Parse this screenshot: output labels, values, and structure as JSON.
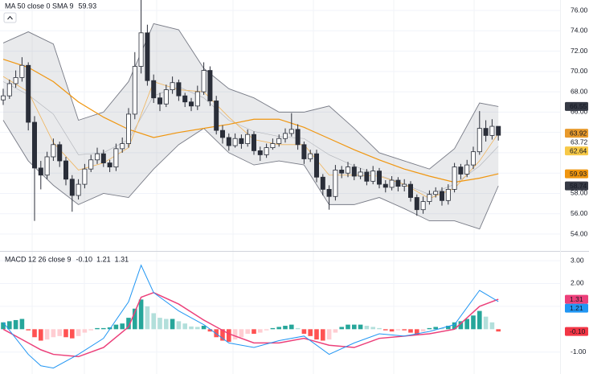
{
  "chart_data": [
    {
      "type": "candlestick",
      "legend": "MA 50 close 0 SMA 9",
      "ylim": [
        52.34,
        77.03
      ],
      "yticks": [
        {
          "value": 54,
          "label": "54.00"
        },
        {
          "value": 56,
          "label": "56.00"
        },
        {
          "value": 58,
          "label": "58.00"
        },
        {
          "value": 60,
          "label": "60.00"
        },
        {
          "value": 62,
          "label": "62.00"
        },
        {
          "value": 64,
          "label": "64.00"
        },
        {
          "value": 66,
          "label": "66.00"
        },
        {
          "value": 68,
          "label": "68.00"
        },
        {
          "value": 70,
          "label": "70.00"
        },
        {
          "value": 72,
          "label": "72.00"
        },
        {
          "value": 74,
          "label": "74.00"
        },
        {
          "value": 76,
          "label": "76.00"
        }
      ],
      "up_color": "#ffffff",
      "down_color": "#2a2e39",
      "wick_color": "#2a2e39",
      "open": [
        67.2,
        67.6,
        68.8,
        69.4,
        70.6,
        65.0,
        60.5,
        59.8,
        61.6,
        62.8,
        61.2,
        59.4,
        57.8,
        58.9,
        60.4,
        61.3,
        61.9,
        61.0,
        60.6,
        62.4,
        62.9,
        65.8,
        70.5,
        73.8,
        69.1,
        67.4,
        66.8,
        68.2,
        68.9,
        67.6,
        67.0,
        66.6,
        68.0,
        70.1,
        67.1,
        64.2,
        63.5,
        62.7,
        63.4,
        62.9,
        63.8,
        62.2,
        61.8,
        62.5,
        62.9,
        63.4,
        63.9,
        64.3,
        62.8,
        61.4,
        61.9,
        59.6,
        58.4,
        57.7,
        60.3,
        60.0,
        60.6,
        59.7,
        60.1,
        59.2,
        60.2,
        58.9,
        58.6,
        59.3,
        58.7,
        58.9,
        57.6,
        56.4,
        57.2,
        57.9,
        58.2,
        57.3,
        58.4,
        60.6,
        59.9,
        60.8,
        62.1,
        64.4,
        63.7,
        64.6
      ],
      "high": [
        68.3,
        69.2,
        70.1,
        71.4,
        70.9,
        65.6,
        61.2,
        62.1,
        63.4,
        63.1,
        61.6,
        59.8,
        59.4,
        60.9,
        61.8,
        62.5,
        62.3,
        61.3,
        62.9,
        63.5,
        66.4,
        71.9,
        78.0,
        74.6,
        69.7,
        67.9,
        68.7,
        69.5,
        69.2,
        67.9,
        67.4,
        68.6,
        70.9,
        70.5,
        67.6,
        64.7,
        63.9,
        63.9,
        63.8,
        64.3,
        64.1,
        62.6,
        62.9,
        63.4,
        63.8,
        64.4,
        65.9,
        64.8,
        63.1,
        62.3,
        62.3,
        59.9,
        58.8,
        60.8,
        60.7,
        61.1,
        60.9,
        60.5,
        60.4,
        60.7,
        60.5,
        59.3,
        59.7,
        59.6,
        59.4,
        59.2,
        57.9,
        57.7,
        58.3,
        58.6,
        58.6,
        58.9,
        61.0,
        60.9,
        61.3,
        62.6,
        66.1,
        65.2,
        65.3,
        64.4
      ],
      "low": [
        66.7,
        67.3,
        68.4,
        69.0,
        64.2,
        55.3,
        58.4,
        59.4,
        61.2,
        60.6,
        58.8,
        56.2,
        57.4,
        58.5,
        60.1,
        60.9,
        60.6,
        60.1,
        60.2,
        62.0,
        62.5,
        65.3,
        69.8,
        68.6,
        66.9,
        66.1,
        66.5,
        67.8,
        67.1,
        66.5,
        66.1,
        66.2,
        67.7,
        66.6,
        63.8,
        62.9,
        62.2,
        62.5,
        62.4,
        62.6,
        61.8,
        61.2,
        61.5,
        62.3,
        62.6,
        63.0,
        63.6,
        62.3,
        60.9,
        61.1,
        59.1,
        57.8,
        56.4,
        57.3,
        59.5,
        59.6,
        59.3,
        59.4,
        58.8,
        58.9,
        58.5,
        58.1,
        58.3,
        58.2,
        58.2,
        57.2,
        55.8,
        56.0,
        56.9,
        57.6,
        56.8,
        56.9,
        58.1,
        59.4,
        59.6,
        60.4,
        61.8,
        63.1,
        63.3,
        63.2
      ],
      "close": [
        67.6,
        68.8,
        69.4,
        70.6,
        65.0,
        60.5,
        59.8,
        61.6,
        62.8,
        61.2,
        59.4,
        57.8,
        58.9,
        60.4,
        61.3,
        61.9,
        61.0,
        60.6,
        62.4,
        62.9,
        65.8,
        70.5,
        73.8,
        69.1,
        67.4,
        66.8,
        68.2,
        68.9,
        67.6,
        67.0,
        66.6,
        68.0,
        70.1,
        67.1,
        64.2,
        63.5,
        62.7,
        63.4,
        62.9,
        63.8,
        62.2,
        61.8,
        62.5,
        62.9,
        63.4,
        63.9,
        64.3,
        62.8,
        61.4,
        61.9,
        59.6,
        58.4,
        57.7,
        60.3,
        60.0,
        60.6,
        59.7,
        60.1,
        59.2,
        60.2,
        58.9,
        58.6,
        59.3,
        58.7,
        58.9,
        57.6,
        56.4,
        57.2,
        57.9,
        58.2,
        57.3,
        58.4,
        60.6,
        59.9,
        60.8,
        62.1,
        64.4,
        63.7,
        64.6,
        63.72
      ],
      "bollinger": {
        "x": [
          0,
          4,
          8,
          12,
          16,
          20,
          24,
          28,
          32,
          36,
          40,
          44,
          48,
          52,
          56,
          60,
          64,
          68,
          72,
          76,
          79
        ],
        "upper": [
          72.8,
          73.9,
          72.7,
          65.2,
          66.0,
          69.0,
          74.7,
          74.1,
          70.3,
          68.3,
          67.4,
          66.0,
          66.0,
          66.6,
          64.4,
          62.0,
          61.2,
          60.4,
          62.4,
          66.9,
          66.55
        ],
        "middle": [
          69.0,
          67.7,
          65.8,
          61.8,
          62.0,
          63.3,
          67.6,
          68.5,
          67.4,
          65.2,
          64.1,
          63.6,
          63.4,
          61.8,
          60.7,
          59.8,
          58.9,
          57.9,
          58.9,
          60.7,
          62.64
        ],
        "lower": [
          65.2,
          61.2,
          58.8,
          56.9,
          58.0,
          57.6,
          60.4,
          62.8,
          64.4,
          62.0,
          60.8,
          61.2,
          60.8,
          56.9,
          56.9,
          57.6,
          56.5,
          55.3,
          55.3,
          54.5,
          58.74
        ],
        "color": "#787b86",
        "fill": "rgba(120,123,134,0.16)",
        "badge_colors": [
          "#363a45",
          "#f7c948",
          "#363a45"
        ]
      },
      "series": [
        {
          "x": [
            0,
            4,
            8,
            12,
            16,
            20,
            24,
            28,
            32,
            36,
            40,
            44,
            48,
            52,
            56,
            60,
            64,
            68,
            72,
            76,
            79
          ],
          "values": [
            69.5,
            68.0,
            63.0,
            60.3,
            61.0,
            62.5,
            69.0,
            68.2,
            68.0,
            65.5,
            63.3,
            62.8,
            62.8,
            59.8,
            59.8,
            59.7,
            58.9,
            57.5,
            58.5,
            61.2,
            63.92
          ],
          "color": "#f0b45a",
          "width": 0.8,
          "badge_color": "#e89a2c"
        },
        {
          "x": [
            0,
            4,
            8,
            12,
            16,
            20,
            24,
            28,
            32,
            36,
            40,
            44,
            48,
            52,
            56,
            60,
            64,
            68,
            72,
            76,
            79
          ],
          "values": [
            71.2,
            70.4,
            69.0,
            67.0,
            65.5,
            64.3,
            63.5,
            64.0,
            64.4,
            64.8,
            65.3,
            65.3,
            64.5,
            63.4,
            62.3,
            61.3,
            60.4,
            59.7,
            59.1,
            59.5,
            59.93
          ],
          "color": "#f0960f",
          "width": 1.2,
          "badge_color": "#f0960f"
        }
      ]
    },
    {
      "type": "macd",
      "title": "MACD 12 26 close 9",
      "ylim": [
        -1.96,
        3.39
      ],
      "yticks": [
        {
          "value": 3,
          "label": "3.00"
        },
        {
          "value": 2,
          "label": "2.00"
        },
        {
          "value": 1,
          "label": "1.00"
        },
        {
          "value": -1,
          "label": "-1.00"
        }
      ],
      "histogram": {
        "values": [
          0.3,
          0.35,
          0.4,
          0.45,
          -0.05,
          -0.35,
          -0.5,
          -0.45,
          -0.35,
          -0.3,
          -0.35,
          -0.4,
          -0.3,
          -0.15,
          -0.05,
          0.05,
          0.05,
          0.08,
          0.2,
          0.25,
          0.5,
          0.9,
          1.3,
          1.0,
          0.7,
          0.5,
          0.45,
          0.45,
          0.35,
          0.25,
          0.12,
          0.1,
          0.15,
          -0.1,
          -0.35,
          -0.5,
          -0.55,
          -0.45,
          -0.35,
          -0.2,
          -0.2,
          -0.15,
          -0.05,
          0.05,
          0.1,
          0.15,
          0.2,
          0.05,
          -0.2,
          -0.3,
          -0.45,
          -0.5,
          -0.45,
          -0.15,
          0.1,
          0.2,
          0.2,
          0.2,
          0.15,
          0.1,
          0.05,
          -0.05,
          -0.1,
          -0.05,
          -0.05,
          -0.15,
          -0.25,
          -0.1,
          0.05,
          0.1,
          0.05,
          0.15,
          0.3,
          0.35,
          0.45,
          0.6,
          0.8,
          0.55,
          0.3,
          -0.1
        ],
        "colors": {
          "pos_rise": "#26a69a",
          "pos_fall": "#b2dfdb",
          "neg_fall": "#ff5252",
          "neg_rise": "#ffcdd2"
        }
      },
      "macd": {
        "x": [
          0,
          4,
          6,
          8,
          12,
          16,
          20,
          22,
          24,
          28,
          32,
          36,
          40,
          44,
          48,
          52,
          56,
          60,
          64,
          68,
          72,
          76,
          79
        ],
        "values": [
          0.3,
          -1.1,
          -1.6,
          -1.7,
          -1.1,
          -0.4,
          1.2,
          2.8,
          1.6,
          0.8,
          0.2,
          -0.6,
          -0.8,
          -0.5,
          -0.3,
          -1.1,
          -0.6,
          -0.2,
          -0.3,
          -0.1,
          0.2,
          1.7,
          1.21
        ],
        "color": "#2196f3"
      },
      "signal": {
        "x": [
          0,
          4,
          6,
          8,
          12,
          16,
          20,
          22,
          24,
          28,
          32,
          36,
          40,
          44,
          48,
          52,
          56,
          60,
          64,
          68,
          72,
          76,
          79
        ],
        "values": [
          0.0,
          -0.6,
          -0.9,
          -1.1,
          -1.2,
          -0.8,
          0.1,
          1.4,
          1.6,
          1.1,
          0.4,
          -0.2,
          -0.6,
          -0.6,
          -0.4,
          -0.7,
          -0.8,
          -0.4,
          -0.3,
          -0.2,
          0.0,
          1.0,
          1.31
        ],
        "color": "#ec407a"
      },
      "readout": [
        {
          "value": -0.1,
          "label": "-0.10",
          "color": "#f23645"
        },
        {
          "value": 1.21,
          "label": "1.21",
          "color": "#2196f3"
        },
        {
          "value": 1.31,
          "label": "1.31",
          "color": "#ec407a"
        }
      ]
    }
  ]
}
